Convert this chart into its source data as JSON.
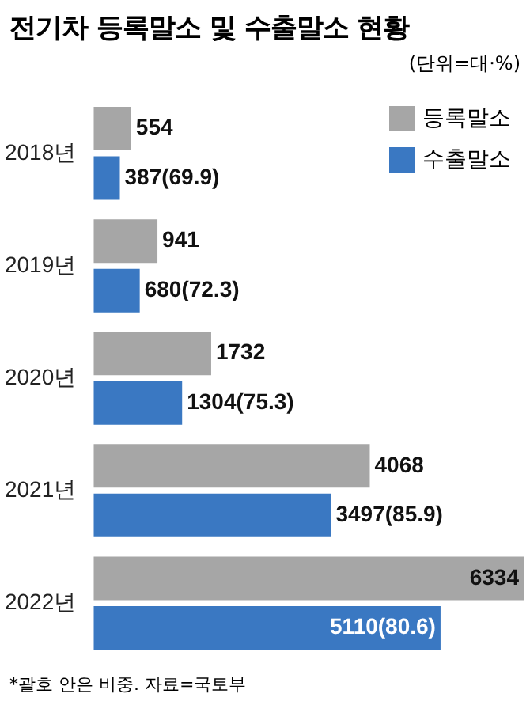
{
  "chart_data": {
    "type": "bar",
    "orientation": "horizontal",
    "title": "전기차 등록말소 및 수출말소 현황",
    "annotations": [
      "(단위=대·%)",
      "*괄호 안은 비중. 자료=국토부"
    ],
    "categories": [
      "2018년",
      "2019년",
      "2020년",
      "2021년",
      "2022년"
    ],
    "series": [
      {
        "name": "등록말소",
        "color": "#a6a6a6",
        "values": [
          554,
          941,
          1732,
          4068,
          6334
        ],
        "value_labels": [
          "554",
          "941",
          "1732",
          "4068",
          "6334"
        ]
      },
      {
        "name": "수출말소",
        "color": "#3a78c2",
        "values": [
          387,
          680,
          1304,
          3497,
          5110
        ],
        "value_labels": [
          "387(69.9)",
          "680(72.3)",
          "1304(75.3)",
          "3497(85.9)",
          "5110(80.6)"
        ]
      }
    ],
    "xlim": [
      0,
      6334
    ],
    "tick_labels": "y",
    "legend": "top right"
  }
}
